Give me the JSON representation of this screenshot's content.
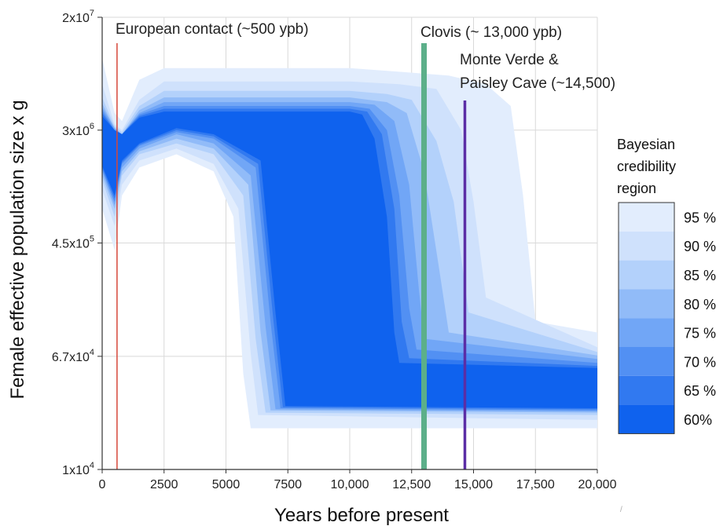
{
  "chart_data": {
    "type": "area",
    "xlabel": "Years before present",
    "ylabel": "Female effective population size x g",
    "xlim": [
      0,
      20000
    ],
    "ylim": [
      10000,
      20000000
    ],
    "yscale": "log",
    "x_ticks": [
      "0",
      "2500",
      "5000",
      "7500",
      "10,000",
      "12,500",
      "15,000",
      "17,500",
      "20,000"
    ],
    "x_tick_values": [
      0,
      2500,
      5000,
      7500,
      10000,
      12500,
      15000,
      17500,
      20000
    ],
    "y_ticks": [
      {
        "mant": "2x10",
        "exp": "7",
        "value": 20000000
      },
      {
        "mant": "3x10",
        "exp": "6",
        "value": 3000000
      },
      {
        "mant": "4.5x10",
        "exp": "5",
        "value": 450000
      },
      {
        "mant": "6.7x10",
        "exp": "4",
        "value": 67000
      },
      {
        "mant": "1x10",
        "exp": "4",
        "value": 10000
      }
    ],
    "grid": true,
    "series": [
      {
        "name": "95 %",
        "color": "#e2edfd",
        "upper": [
          [
            0,
            10000000
          ],
          [
            500,
            4000000
          ],
          [
            800,
            3500000
          ],
          [
            1500,
            7000000
          ],
          [
            2500,
            8500000
          ],
          [
            10000,
            8500000
          ],
          [
            12000,
            8000000
          ],
          [
            14000,
            7500000
          ],
          [
            15500,
            6500000
          ],
          [
            16500,
            4500000
          ],
          [
            17000,
            1000000
          ],
          [
            17500,
            120000
          ],
          [
            20000,
            100000
          ]
        ],
        "lower": [
          [
            0,
            800000
          ],
          [
            500,
            400000
          ],
          [
            800,
            1000000
          ],
          [
            1500,
            1600000
          ],
          [
            3000,
            2000000
          ],
          [
            4500,
            1500000
          ],
          [
            5300,
            700000
          ],
          [
            5700,
            50000
          ],
          [
            6000,
            20000
          ],
          [
            20000,
            20000
          ]
        ]
      },
      {
        "name": "90 %",
        "color": "#cfe1fc",
        "upper": [
          [
            0,
            6500000
          ],
          [
            500,
            3300000
          ],
          [
            800,
            3000000
          ],
          [
            1500,
            5000000
          ],
          [
            2500,
            6800000
          ],
          [
            10000,
            6800000
          ],
          [
            12000,
            6500000
          ],
          [
            13500,
            6000000
          ],
          [
            14500,
            3000000
          ],
          [
            15000,
            900000
          ],
          [
            15500,
            180000
          ],
          [
            20000,
            78000
          ]
        ],
        "lower": [
          [
            0,
            1100000
          ],
          [
            500,
            600000
          ],
          [
            800,
            1200000
          ],
          [
            1500,
            1800000
          ],
          [
            3000,
            2200000
          ],
          [
            4500,
            1700000
          ],
          [
            5500,
            800000
          ],
          [
            6000,
            70000
          ],
          [
            6300,
            25000
          ],
          [
            20000,
            23000
          ]
        ]
      },
      {
        "name": "85 %",
        "color": "#b3d1fb",
        "upper": [
          [
            0,
            5200000
          ],
          [
            500,
            3200000
          ],
          [
            800,
            2900000
          ],
          [
            1500,
            4500000
          ],
          [
            2500,
            5800000
          ],
          [
            10000,
            5800000
          ],
          [
            11500,
            5500000
          ],
          [
            12500,
            5000000
          ],
          [
            13500,
            2500000
          ],
          [
            14200,
            900000
          ],
          [
            14800,
            140000
          ],
          [
            20000,
            72000
          ]
        ],
        "lower": [
          [
            0,
            1300000
          ],
          [
            500,
            700000
          ],
          [
            800,
            1400000
          ],
          [
            1500,
            2000000
          ],
          [
            3000,
            2400000
          ],
          [
            4500,
            2000000
          ],
          [
            5700,
            1000000
          ],
          [
            6200,
            90000
          ],
          [
            6600,
            26000
          ],
          [
            20000,
            25000
          ]
        ]
      },
      {
        "name": "80 %",
        "color": "#91bbf8",
        "upper": [
          [
            0,
            4700000
          ],
          [
            500,
            3100000
          ],
          [
            800,
            2800000
          ],
          [
            1500,
            4200000
          ],
          [
            2500,
            5200000
          ],
          [
            10000,
            5200000
          ],
          [
            11500,
            4800000
          ],
          [
            12300,
            4000000
          ],
          [
            13000,
            1500000
          ],
          [
            13600,
            300000
          ],
          [
            14000,
            100000
          ],
          [
            20000,
            68000
          ]
        ],
        "lower": [
          [
            0,
            1400000
          ],
          [
            500,
            800000
          ],
          [
            800,
            1500000
          ],
          [
            1500,
            2100000
          ],
          [
            3000,
            2600000
          ],
          [
            4500,
            2200000
          ],
          [
            5900,
            1200000
          ],
          [
            6400,
            100000
          ],
          [
            6800,
            27000
          ],
          [
            20000,
            26000
          ]
        ]
      },
      {
        "name": "75 %",
        "color": "#71a6f6",
        "upper": [
          [
            0,
            4400000
          ],
          [
            500,
            3100000
          ],
          [
            800,
            2800000
          ],
          [
            1500,
            4000000
          ],
          [
            2500,
            4800000
          ],
          [
            10000,
            4800000
          ],
          [
            11000,
            4600000
          ],
          [
            11800,
            3500000
          ],
          [
            12400,
            1200000
          ],
          [
            12800,
            200000
          ],
          [
            13000,
            90000
          ],
          [
            20000,
            64000
          ]
        ],
        "lower": [
          [
            0,
            1500000
          ],
          [
            500,
            850000
          ],
          [
            800,
            1600000
          ],
          [
            1500,
            2200000
          ],
          [
            3000,
            2800000
          ],
          [
            4500,
            2400000
          ],
          [
            6000,
            1400000
          ],
          [
            6600,
            110000
          ],
          [
            7000,
            27500
          ],
          [
            20000,
            26500
          ]
        ]
      },
      {
        "name": "70 %",
        "color": "#5290f3",
        "upper": [
          [
            0,
            4200000
          ],
          [
            500,
            3000000
          ],
          [
            800,
            2800000
          ],
          [
            1500,
            3900000
          ],
          [
            2500,
            4500000
          ],
          [
            10000,
            4500000
          ],
          [
            10800,
            4300000
          ],
          [
            11500,
            3000000
          ],
          [
            12000,
            1000000
          ],
          [
            12400,
            150000
          ],
          [
            12700,
            75000
          ],
          [
            20000,
            60000
          ]
        ],
        "lower": [
          [
            0,
            1550000
          ],
          [
            500,
            900000
          ],
          [
            800,
            1700000
          ],
          [
            1500,
            2300000
          ],
          [
            3000,
            2900000
          ],
          [
            4500,
            2600000
          ],
          [
            6200,
            1600000
          ],
          [
            6800,
            120000
          ],
          [
            7200,
            28000
          ],
          [
            20000,
            27000
          ]
        ]
      },
      {
        "name": "65 %",
        "color": "#3179f0",
        "upper": [
          [
            0,
            4000000
          ],
          [
            500,
            3000000
          ],
          [
            800,
            2800000
          ],
          [
            1500,
            3800000
          ],
          [
            2500,
            4300000
          ],
          [
            10000,
            4300000
          ],
          [
            10700,
            4100000
          ],
          [
            11300,
            2800000
          ],
          [
            11800,
            800000
          ],
          [
            12100,
            120000
          ],
          [
            12400,
            65000
          ],
          [
            20000,
            57000
          ]
        ],
        "lower": [
          [
            0,
            1600000
          ],
          [
            500,
            950000
          ],
          [
            800,
            1750000
          ],
          [
            1500,
            2350000
          ],
          [
            3000,
            3000000
          ],
          [
            4500,
            2700000
          ],
          [
            6300,
            1700000
          ],
          [
            6900,
            130000
          ],
          [
            7300,
            28500
          ],
          [
            20000,
            27500
          ]
        ]
      },
      {
        "name": "60%",
        "color": "#0f62ee",
        "upper": [
          [
            0,
            3800000
          ],
          [
            500,
            3000000
          ],
          [
            800,
            2800000
          ],
          [
            1500,
            3700000
          ],
          [
            2500,
            4100000
          ],
          [
            10000,
            4100000
          ],
          [
            10500,
            3900000
          ],
          [
            11000,
            2600000
          ],
          [
            11500,
            700000
          ],
          [
            11800,
            100000
          ],
          [
            12000,
            60000
          ],
          [
            20000,
            55000
          ]
        ],
        "lower": [
          [
            0,
            1650000
          ],
          [
            500,
            1000000
          ],
          [
            800,
            1800000
          ],
          [
            1500,
            2400000
          ],
          [
            3000,
            3100000
          ],
          [
            4500,
            2800000
          ],
          [
            6400,
            1800000
          ],
          [
            7000,
            140000
          ],
          [
            7400,
            29000
          ],
          [
            20000,
            28000
          ]
        ]
      }
    ],
    "events": [
      {
        "label": "European contact (~500 ypb)",
        "x": 600,
        "color": "#d6473a"
      },
      {
        "label": "Clovis (~ 13,000 ypb)",
        "x": 13000,
        "color": "#5caf8a"
      },
      {
        "label_lines": [
          "Monte Verde &",
          "Paisley Cave (~14,500)"
        ],
        "x": 14650,
        "color": "#5b2ea6"
      }
    ],
    "legend": {
      "title_lines": [
        "Bayesian",
        "credibility",
        "region"
      ],
      "placement": "right"
    }
  }
}
